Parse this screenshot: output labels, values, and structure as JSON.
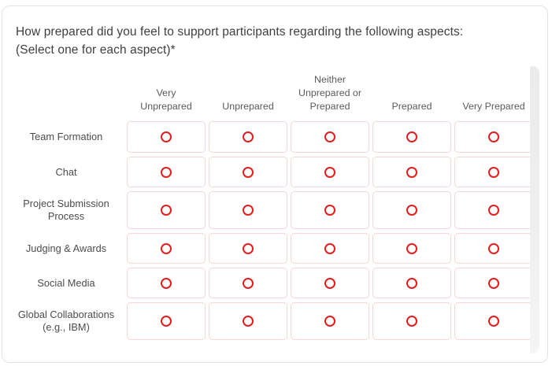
{
  "question": {
    "line1": "How prepared did you feel to support participants regarding the following aspects:",
    "line2": "(Select one for each aspect)*"
  },
  "matrix": {
    "columns": [
      "Very Unprepared",
      "Unprepared",
      "Neither Unprepared or Prepared",
      "Prepared",
      "Very Prepared"
    ],
    "rows": [
      "Team Formation",
      "Chat",
      "Project Submission Process",
      "Judging & Awards",
      "Social Media",
      "Global Collaborations (e.g., IBM)"
    ],
    "selected": {}
  },
  "colors": {
    "radio_red": "#e02020",
    "cell_border_pink": "#f4d7d4",
    "card_border_grey": "#e4e4e4"
  }
}
